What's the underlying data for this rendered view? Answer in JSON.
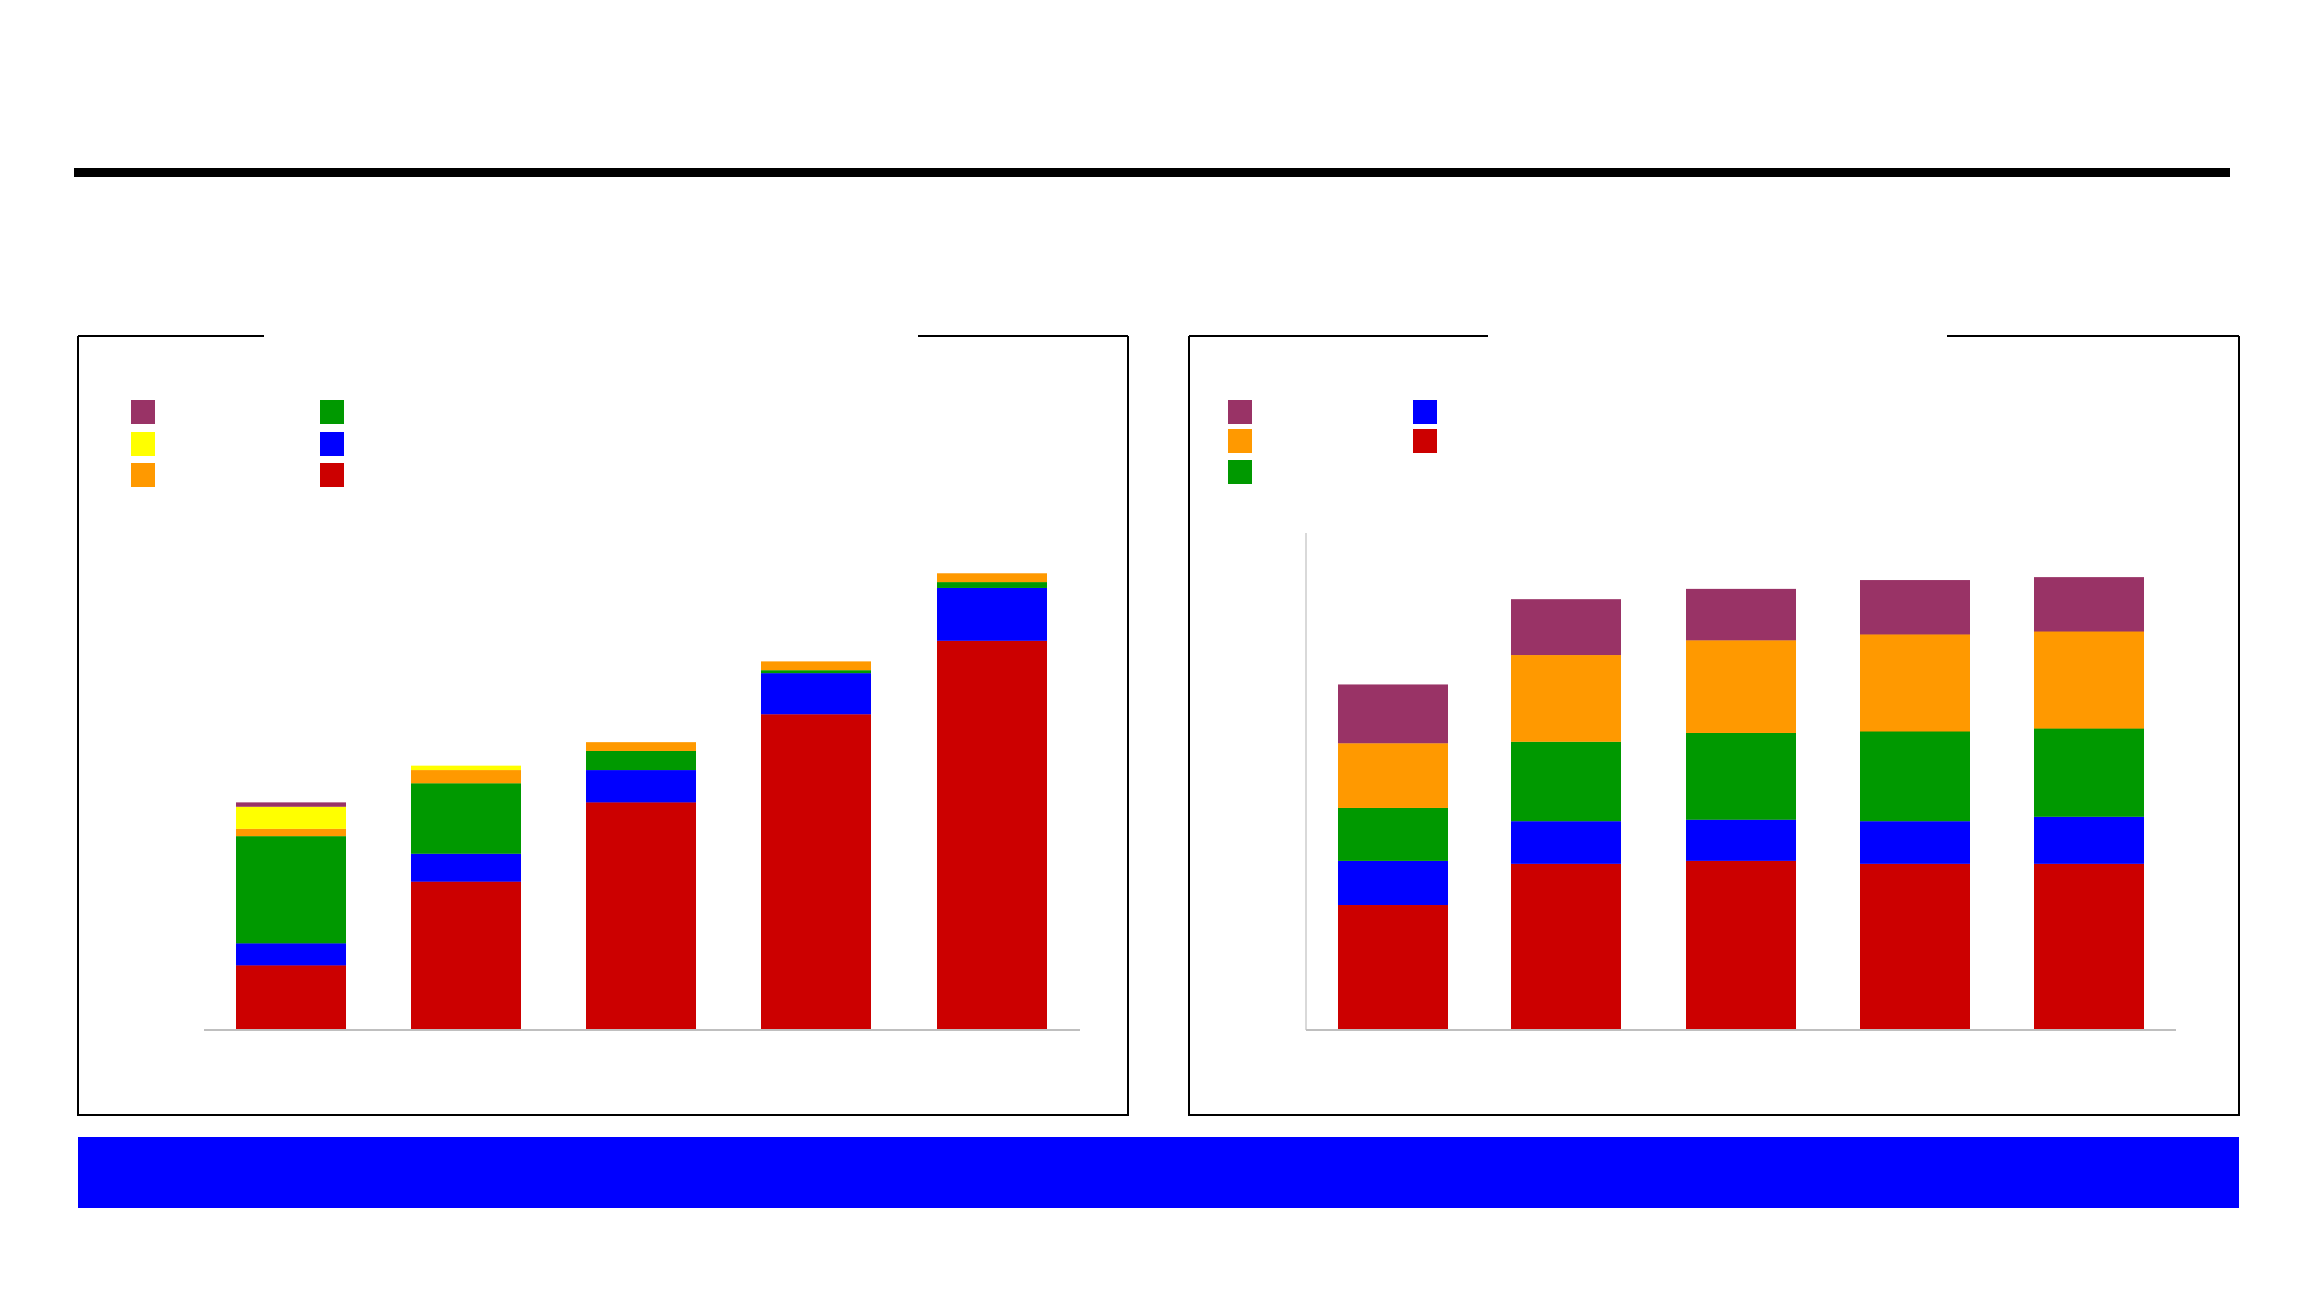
{
  "chart_data": [
    {
      "type": "bar",
      "stacked": true,
      "categories": [
        null,
        null,
        null,
        null,
        null
      ],
      "ylim": [
        0,
        350
      ],
      "series": [
        {
          "color": "#993366",
          "values": [
            3,
            0,
            0,
            0,
            0
          ]
        },
        {
          "color": "#ffff00",
          "values": [
            15,
            3,
            0,
            0,
            0
          ]
        },
        {
          "color": "#ff9900",
          "values": [
            5,
            9,
            6,
            6,
            6
          ]
        },
        {
          "color": "#009900",
          "values": [
            73,
            48,
            13,
            2,
            4
          ]
        },
        {
          "color": "#0000ff",
          "values": [
            15,
            19,
            22,
            28,
            36
          ]
        },
        {
          "color": "#cc0000",
          "values": [
            44,
            101,
            155,
            215,
            265
          ]
        }
      ]
    },
    {
      "type": "bar",
      "stacked": true,
      "categories": [
        null,
        null,
        null,
        null,
        null
      ],
      "ylim": [
        0,
        338
      ],
      "series": [
        {
          "color": "#993366",
          "values": [
            40,
            38,
            35,
            37,
            37
          ]
        },
        {
          "color": "#ff9900",
          "values": [
            44,
            59,
            63,
            66,
            66
          ]
        },
        {
          "color": "#009900",
          "values": [
            36,
            54,
            59,
            61,
            60
          ]
        },
        {
          "color": "#0000ff",
          "values": [
            30,
            29,
            28,
            29,
            32
          ]
        },
        {
          "color": "#cc0000",
          "values": [
            85,
            113,
            115,
            113,
            113
          ]
        }
      ]
    }
  ]
}
